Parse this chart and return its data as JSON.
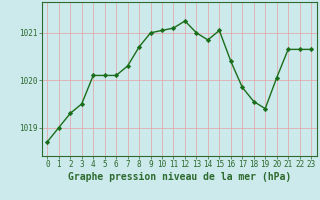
{
  "x": [
    0,
    1,
    2,
    3,
    4,
    5,
    6,
    7,
    8,
    9,
    10,
    11,
    12,
    13,
    14,
    15,
    16,
    17,
    18,
    19,
    20,
    21,
    22,
    23
  ],
  "y": [
    1018.7,
    1019.0,
    1019.3,
    1019.5,
    1020.1,
    1020.1,
    1020.1,
    1020.3,
    1020.7,
    1021.0,
    1021.05,
    1021.1,
    1021.25,
    1021.0,
    1020.85,
    1021.05,
    1020.4,
    1019.85,
    1019.55,
    1019.4,
    1020.05,
    1020.65,
    1020.65,
    1020.65
  ],
  "line_color": "#1a6e1a",
  "marker": "D",
  "marker_size": 2.2,
  "bg_color": "#cce9ec",
  "grid_color": "#e8a0a0",
  "border_color": "#2d6a2d",
  "xlabel": "Graphe pression niveau de la mer (hPa)",
  "xlabel_fontsize": 7.0,
  "yticks": [
    1019,
    1020,
    1021
  ],
  "ylim": [
    1018.4,
    1021.65
  ],
  "xlim": [
    -0.5,
    23.5
  ],
  "xticks": [
    0,
    1,
    2,
    3,
    4,
    5,
    6,
    7,
    8,
    9,
    10,
    11,
    12,
    13,
    14,
    15,
    16,
    17,
    18,
    19,
    20,
    21,
    22,
    23
  ],
  "tick_fontsize": 5.5,
  "line_width": 1.0
}
